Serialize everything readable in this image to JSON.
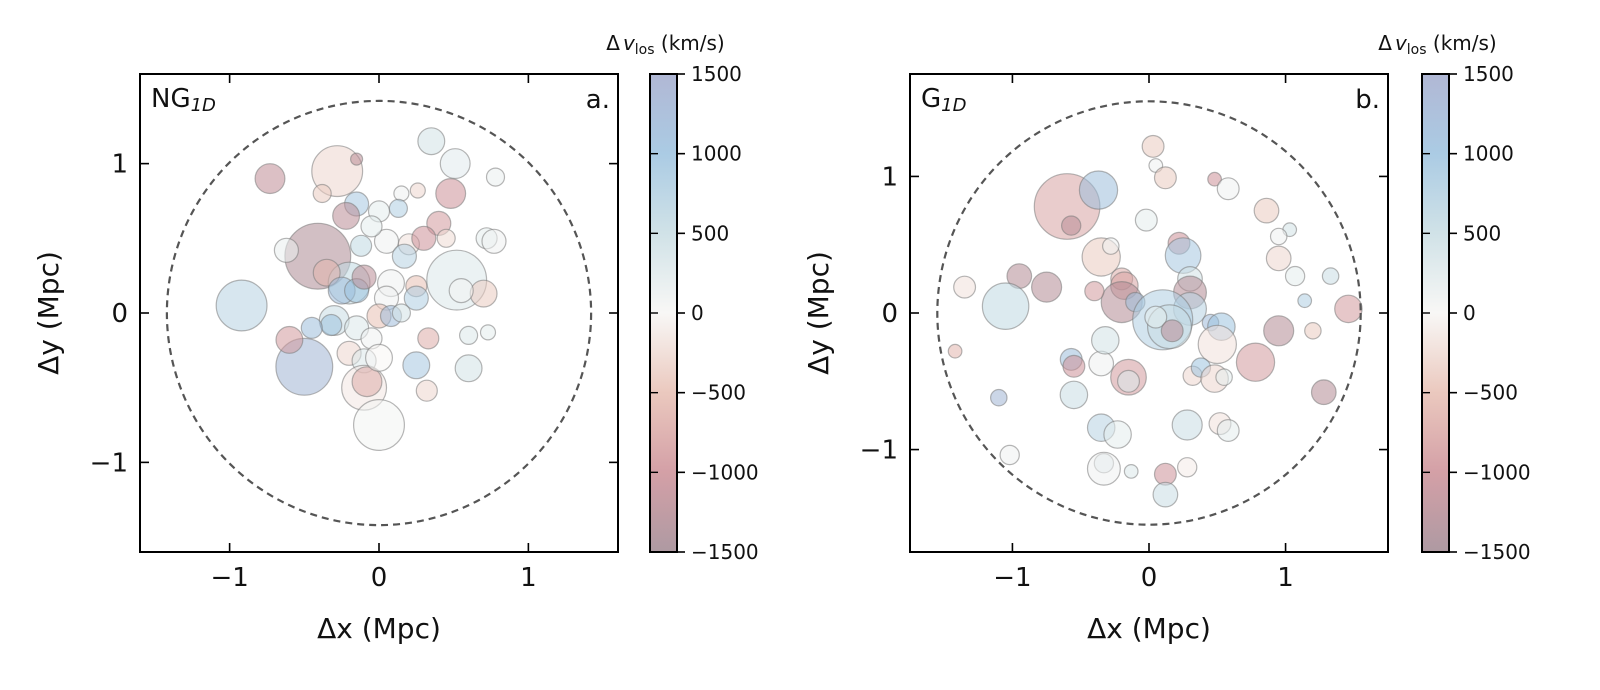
{
  "colors": {
    "colormap_stops": [
      [
        -1500,
        "#a08892"
      ],
      [
        -1000,
        "#cc8f97"
      ],
      [
        -500,
        "#e7bfb3"
      ],
      [
        0,
        "#f7f6f4"
      ],
      [
        500,
        "#c8dde3"
      ],
      [
        1000,
        "#9cc2df"
      ],
      [
        1500,
        "#a3abcd"
      ]
    ],
    "ring": "#555555",
    "axes": "#000000"
  },
  "chart_data": [
    {
      "type": "scatter",
      "panel_label": "a.",
      "title_main": "NG",
      "title_sub": "1D",
      "xlabel": "Δx   (Mpc)",
      "ylabel": "Δy   (Mpc)",
      "xlim": [
        -1.6,
        1.6
      ],
      "ylim": [
        -1.6,
        1.6
      ],
      "xticks": [
        {
          "v": -1,
          "label": "−1"
        },
        {
          "v": 0,
          "label": "0"
        },
        {
          "v": 1,
          "label": "1"
        }
      ],
      "yticks": [
        {
          "v": 1,
          "label": "1"
        },
        {
          "v": 0,
          "label": "0"
        },
        {
          "v": -1,
          "label": "−1"
        }
      ],
      "ring_radius": 1.42,
      "points": [
        {
          "x": -0.28,
          "y": 0.95,
          "r": 0.17,
          "v": -300
        },
        {
          "x": -0.73,
          "y": 0.9,
          "r": 0.1,
          "v": -1150
        },
        {
          "x": -0.41,
          "y": 0.38,
          "r": 0.22,
          "v": -1350
        },
        {
          "x": -0.92,
          "y": 0.05,
          "r": 0.17,
          "v": 700
        },
        {
          "x": -0.5,
          "y": -0.36,
          "r": 0.19,
          "v": 1300
        },
        {
          "x": -0.6,
          "y": -0.18,
          "r": 0.09,
          "v": -900
        },
        {
          "x": -0.62,
          "y": 0.42,
          "r": 0.08,
          "v": 150
        },
        {
          "x": -0.38,
          "y": 0.8,
          "r": 0.06,
          "v": -400
        },
        {
          "x": -0.15,
          "y": 1.03,
          "r": 0.04,
          "v": -1200
        },
        {
          "x": 0.35,
          "y": 1.15,
          "r": 0.09,
          "v": 400
        },
        {
          "x": 0.51,
          "y": 1.0,
          "r": 0.1,
          "v": 250
        },
        {
          "x": 0.48,
          "y": 0.8,
          "r": 0.1,
          "v": -1000
        },
        {
          "x": 0.78,
          "y": 0.91,
          "r": 0.06,
          "v": 150
        },
        {
          "x": -0.15,
          "y": 0.73,
          "r": 0.08,
          "v": 900
        },
        {
          "x": 0.0,
          "y": 0.68,
          "r": 0.07,
          "v": 200
        },
        {
          "x": 0.15,
          "y": 0.8,
          "r": 0.05,
          "v": 100
        },
        {
          "x": 0.13,
          "y": 0.7,
          "r": 0.06,
          "v": 800
        },
        {
          "x": 0.26,
          "y": 0.82,
          "r": 0.05,
          "v": -300
        },
        {
          "x": -0.22,
          "y": 0.65,
          "r": 0.09,
          "v": -1200
        },
        {
          "x": 0.4,
          "y": 0.6,
          "r": 0.08,
          "v": -900
        },
        {
          "x": 0.05,
          "y": 0.48,
          "r": 0.08,
          "v": 100
        },
        {
          "x": 0.2,
          "y": 0.46,
          "r": 0.07,
          "v": -200
        },
        {
          "x": 0.3,
          "y": 0.5,
          "r": 0.08,
          "v": -1000
        },
        {
          "x": 0.45,
          "y": 0.5,
          "r": 0.06,
          "v": -250
        },
        {
          "x": 0.72,
          "y": 0.5,
          "r": 0.07,
          "v": 200
        },
        {
          "x": 0.77,
          "y": 0.48,
          "r": 0.08,
          "v": 100
        },
        {
          "x": -0.12,
          "y": 0.45,
          "r": 0.07,
          "v": 600
        },
        {
          "x": -0.05,
          "y": 0.58,
          "r": 0.07,
          "v": 200
        },
        {
          "x": 0.17,
          "y": 0.38,
          "r": 0.08,
          "v": 700
        },
        {
          "x": 0.52,
          "y": 0.22,
          "r": 0.2,
          "v": 300
        },
        {
          "x": 0.7,
          "y": 0.13,
          "r": 0.09,
          "v": -400
        },
        {
          "x": -0.2,
          "y": 0.2,
          "r": 0.14,
          "v": 600
        },
        {
          "x": -0.35,
          "y": 0.27,
          "r": 0.09,
          "v": -600
        },
        {
          "x": -0.25,
          "y": 0.15,
          "r": 0.09,
          "v": 1150
        },
        {
          "x": -0.15,
          "y": 0.15,
          "r": 0.08,
          "v": 1000
        },
        {
          "x": -0.1,
          "y": 0.24,
          "r": 0.08,
          "v": -1200
        },
        {
          "x": 0.08,
          "y": 0.2,
          "r": 0.09,
          "v": 100
        },
        {
          "x": 0.25,
          "y": 0.18,
          "r": 0.07,
          "v": -500
        },
        {
          "x": 0.25,
          "y": 0.1,
          "r": 0.08,
          "v": 800
        },
        {
          "x": 0.05,
          "y": 0.1,
          "r": 0.08,
          "v": 100
        },
        {
          "x": -0.3,
          "y": -0.05,
          "r": 0.1,
          "v": 500
        },
        {
          "x": -0.32,
          "y": -0.08,
          "r": 0.07,
          "v": 1000
        },
        {
          "x": -0.45,
          "y": -0.1,
          "r": 0.07,
          "v": 1100
        },
        {
          "x": -0.15,
          "y": -0.1,
          "r": 0.08,
          "v": 300
        },
        {
          "x": 0.0,
          "y": -0.02,
          "r": 0.08,
          "v": -500
        },
        {
          "x": 0.08,
          "y": -0.02,
          "r": 0.07,
          "v": 1150
        },
        {
          "x": 0.15,
          "y": 0.0,
          "r": 0.06,
          "v": 400
        },
        {
          "x": 0.55,
          "y": 0.15,
          "r": 0.08,
          "v": 50
        },
        {
          "x": -0.05,
          "y": -0.17,
          "r": 0.07,
          "v": 100
        },
        {
          "x": 0.33,
          "y": -0.17,
          "r": 0.07,
          "v": -700
        },
        {
          "x": 0.6,
          "y": -0.15,
          "r": 0.06,
          "v": 300
        },
        {
          "x": 0.73,
          "y": -0.13,
          "r": 0.05,
          "v": 200
        },
        {
          "x": -0.2,
          "y": -0.27,
          "r": 0.08,
          "v": -300
        },
        {
          "x": -0.1,
          "y": -0.32,
          "r": 0.08,
          "v": 300
        },
        {
          "x": 0.25,
          "y": -0.35,
          "r": 0.09,
          "v": 900
        },
        {
          "x": 0.6,
          "y": -0.37,
          "r": 0.09,
          "v": 400
        },
        {
          "x": -0.1,
          "y": -0.5,
          "r": 0.15,
          "v": -150
        },
        {
          "x": -0.08,
          "y": -0.46,
          "r": 0.1,
          "v": -700
        },
        {
          "x": 0.32,
          "y": -0.52,
          "r": 0.07,
          "v": -300
        },
        {
          "x": 0.0,
          "y": -0.75,
          "r": 0.17,
          "v": 50
        },
        {
          "x": 0.0,
          "y": -0.3,
          "r": 0.09,
          "v": 0
        }
      ]
    },
    {
      "type": "scatter",
      "panel_label": "b.",
      "title_main": "G",
      "title_sub": "1D",
      "xlabel": "Δx   (Mpc)",
      "ylabel": "Δy   (Mpc)",
      "xlim": [
        -1.75,
        1.75
      ],
      "ylim": [
        -1.75,
        1.75
      ],
      "xticks": [
        {
          "v": -1,
          "label": "−1"
        },
        {
          "v": 0,
          "label": "0"
        },
        {
          "v": 1,
          "label": "1"
        }
      ],
      "yticks": [
        {
          "v": 1,
          "label": "1"
        },
        {
          "v": 0,
          "label": "0"
        },
        {
          "v": -1,
          "label": "−1"
        }
      ],
      "ring_radius": 1.55,
      "points": [
        {
          "x": -0.6,
          "y": 0.78,
          "r": 0.24,
          "v": -800
        },
        {
          "x": -0.57,
          "y": 0.64,
          "r": 0.07,
          "v": -1200
        },
        {
          "x": -0.37,
          "y": 0.9,
          "r": 0.14,
          "v": 1100
        },
        {
          "x": 0.03,
          "y": 1.22,
          "r": 0.08,
          "v": -400
        },
        {
          "x": 0.05,
          "y": 1.08,
          "r": 0.05,
          "v": 100
        },
        {
          "x": 0.12,
          "y": 0.99,
          "r": 0.08,
          "v": -400
        },
        {
          "x": 0.48,
          "y": 0.98,
          "r": 0.05,
          "v": -1000
        },
        {
          "x": 0.58,
          "y": 0.91,
          "r": 0.08,
          "v": 100
        },
        {
          "x": 0.86,
          "y": 0.75,
          "r": 0.09,
          "v": -400
        },
        {
          "x": 1.03,
          "y": 0.61,
          "r": 0.05,
          "v": 400
        },
        {
          "x": 0.95,
          "y": 0.56,
          "r": 0.06,
          "v": 100
        },
        {
          "x": 0.95,
          "y": 0.4,
          "r": 0.09,
          "v": -300
        },
        {
          "x": 1.07,
          "y": 0.27,
          "r": 0.07,
          "v": 200
        },
        {
          "x": 1.33,
          "y": 0.27,
          "r": 0.06,
          "v": 500
        },
        {
          "x": 1.14,
          "y": 0.09,
          "r": 0.05,
          "v": 800
        },
        {
          "x": 1.46,
          "y": 0.03,
          "r": 0.1,
          "v": -900
        },
        {
          "x": -0.02,
          "y": 0.68,
          "r": 0.08,
          "v": 200
        },
        {
          "x": 0.22,
          "y": 0.51,
          "r": 0.08,
          "v": -1000
        },
        {
          "x": 0.25,
          "y": 0.42,
          "r": 0.13,
          "v": 900
        },
        {
          "x": -0.35,
          "y": 0.41,
          "r": 0.14,
          "v": -400
        },
        {
          "x": -0.28,
          "y": 0.49,
          "r": 0.06,
          "v": 100
        },
        {
          "x": -0.95,
          "y": 0.27,
          "r": 0.09,
          "v": -1300
        },
        {
          "x": -0.75,
          "y": 0.19,
          "r": 0.11,
          "v": -1300
        },
        {
          "x": -1.35,
          "y": 0.19,
          "r": 0.08,
          "v": -200
        },
        {
          "x": -1.05,
          "y": 0.05,
          "r": 0.17,
          "v": 600
        },
        {
          "x": -0.2,
          "y": 0.25,
          "r": 0.08,
          "v": -700
        },
        {
          "x": -0.18,
          "y": 0.2,
          "r": 0.1,
          "v": -800
        },
        {
          "x": -0.2,
          "y": 0.08,
          "r": 0.15,
          "v": -1300
        },
        {
          "x": -0.4,
          "y": 0.16,
          "r": 0.07,
          "v": -900
        },
        {
          "x": -0.1,
          "y": 0.08,
          "r": 0.07,
          "v": 1100
        },
        {
          "x": 0.3,
          "y": 0.25,
          "r": 0.09,
          "v": 400
        },
        {
          "x": 0.3,
          "y": 0.15,
          "r": 0.12,
          "v": -1300
        },
        {
          "x": 0.3,
          "y": 0.03,
          "r": 0.12,
          "v": 700
        },
        {
          "x": 0.1,
          "y": -0.05,
          "r": 0.22,
          "v": 800
        },
        {
          "x": 0.15,
          "y": -0.1,
          "r": 0.16,
          "v": 500
        },
        {
          "x": 0.05,
          "y": -0.03,
          "r": 0.08,
          "v": 200
        },
        {
          "x": 0.17,
          "y": -0.13,
          "r": 0.08,
          "v": -1200
        },
        {
          "x": 0.45,
          "y": -0.07,
          "r": 0.06,
          "v": 1200
        },
        {
          "x": 0.53,
          "y": -0.1,
          "r": 0.1,
          "v": 1000
        },
        {
          "x": 0.5,
          "y": -0.23,
          "r": 0.14,
          "v": -200
        },
        {
          "x": 0.95,
          "y": -0.13,
          "r": 0.11,
          "v": -1300
        },
        {
          "x": 1.2,
          "y": -0.13,
          "r": 0.06,
          "v": -400
        },
        {
          "x": -1.42,
          "y": -0.28,
          "r": 0.05,
          "v": -600
        },
        {
          "x": -0.57,
          "y": -0.34,
          "r": 0.08,
          "v": 1100
        },
        {
          "x": -0.55,
          "y": -0.39,
          "r": 0.08,
          "v": -1000
        },
        {
          "x": -0.35,
          "y": -0.37,
          "r": 0.09,
          "v": 100
        },
        {
          "x": -0.32,
          "y": -0.2,
          "r": 0.1,
          "v": 400
        },
        {
          "x": -0.15,
          "y": -0.47,
          "r": 0.13,
          "v": -900
        },
        {
          "x": -0.15,
          "y": -0.5,
          "r": 0.08,
          "v": 300
        },
        {
          "x": 0.32,
          "y": -0.46,
          "r": 0.07,
          "v": -300
        },
        {
          "x": 0.38,
          "y": -0.4,
          "r": 0.07,
          "v": 1000
        },
        {
          "x": 0.48,
          "y": -0.48,
          "r": 0.1,
          "v": -300
        },
        {
          "x": 0.55,
          "y": -0.47,
          "r": 0.06,
          "v": 200
        },
        {
          "x": 0.78,
          "y": -0.36,
          "r": 0.14,
          "v": -900
        },
        {
          "x": 1.28,
          "y": -0.58,
          "r": 0.09,
          "v": -1300
        },
        {
          "x": -0.55,
          "y": -0.6,
          "r": 0.1,
          "v": 500
        },
        {
          "x": -1.1,
          "y": -0.62,
          "r": 0.06,
          "v": 1300
        },
        {
          "x": -0.35,
          "y": -0.84,
          "r": 0.1,
          "v": 700
        },
        {
          "x": -0.23,
          "y": -0.89,
          "r": 0.1,
          "v": 200
        },
        {
          "x": 0.28,
          "y": -0.82,
          "r": 0.11,
          "v": 500
        },
        {
          "x": 0.52,
          "y": -0.81,
          "r": 0.08,
          "v": -200
        },
        {
          "x": 0.58,
          "y": -0.86,
          "r": 0.08,
          "v": 200
        },
        {
          "x": -1.02,
          "y": -1.04,
          "r": 0.07,
          "v": 100
        },
        {
          "x": -0.33,
          "y": -1.1,
          "r": 0.07,
          "v": 300
        },
        {
          "x": -0.33,
          "y": -1.14,
          "r": 0.12,
          "v": 100
        },
        {
          "x": -0.13,
          "y": -1.16,
          "r": 0.05,
          "v": 300
        },
        {
          "x": 0.28,
          "y": -1.13,
          "r": 0.07,
          "v": -100
        },
        {
          "x": 0.12,
          "y": -1.18,
          "r": 0.08,
          "v": -1000
        },
        {
          "x": 0.12,
          "y": -1.33,
          "r": 0.09,
          "v": 500
        }
      ]
    }
  ],
  "colorbar": {
    "title_prefix": "Δ",
    "title_var": "v",
    "title_sub": "los",
    "title_unit": " (km/s)",
    "vmin": -1500,
    "vmax": 1500,
    "ticks": [
      {
        "v": 1500,
        "label": "1500"
      },
      {
        "v": 1000,
        "label": "1000"
      },
      {
        "v": 500,
        "label": "500"
      },
      {
        "v": 0,
        "label": "0"
      },
      {
        "v": -500,
        "label": "−500"
      },
      {
        "v": -1000,
        "label": "−1000"
      },
      {
        "v": -1500,
        "label": "−1500"
      }
    ]
  }
}
